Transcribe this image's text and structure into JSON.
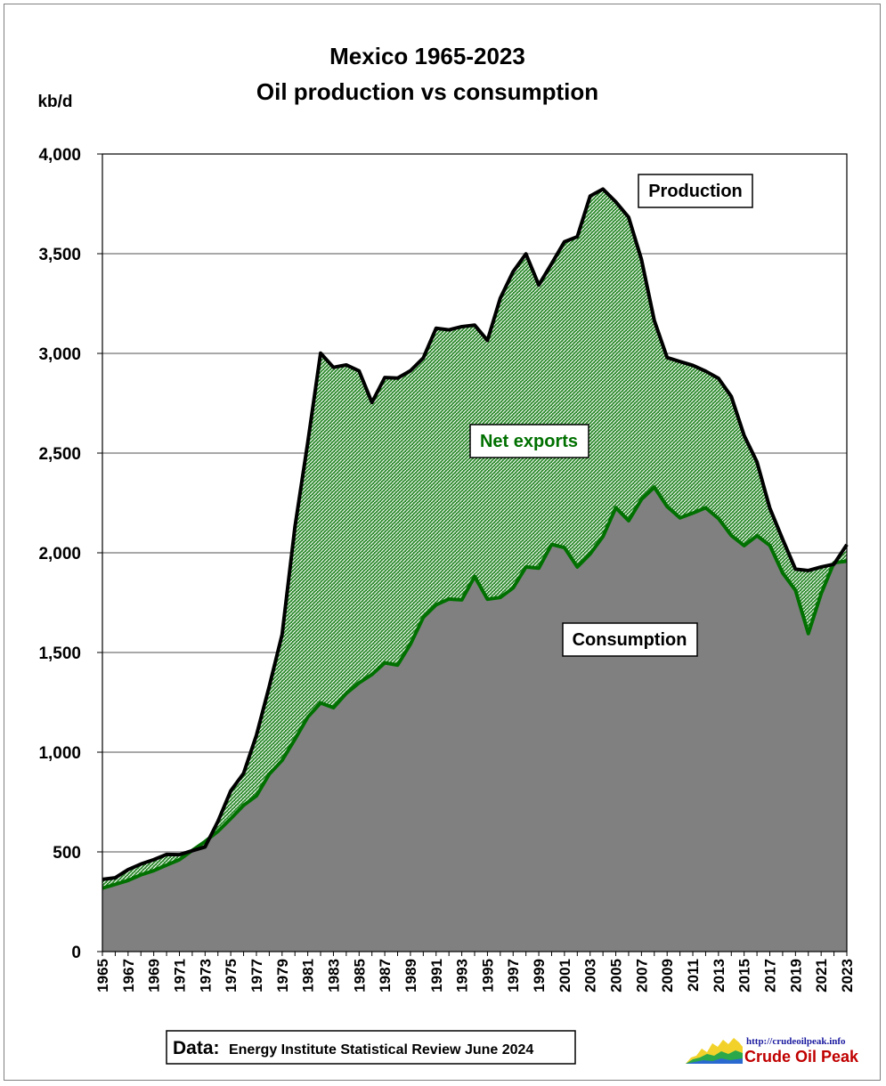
{
  "chart_data": {
    "type": "area",
    "title_lines": [
      "Mexico 1965-2023",
      "Oil production vs consumption"
    ],
    "ylabel": "kb/d",
    "ylim": [
      0,
      4000
    ],
    "yticks": [
      0,
      500,
      1000,
      1500,
      2000,
      2500,
      3000,
      3500,
      4000
    ],
    "ytick_labels": [
      "0",
      "500",
      "1,000",
      "1,500",
      "2,000",
      "2,500",
      "3,000",
      "3,500",
      "4,000"
    ],
    "xlim": [
      1965,
      2023
    ],
    "xtick_years": [
      1965,
      1967,
      1969,
      1971,
      1973,
      1975,
      1977,
      1979,
      1981,
      1983,
      1985,
      1987,
      1989,
      1991,
      1993,
      1995,
      1997,
      1999,
      2001,
      2003,
      2005,
      2007,
      2009,
      2011,
      2013,
      2015,
      2017,
      2019,
      2021,
      2023
    ],
    "grid": "horizontal",
    "colors": {
      "production": "#000000",
      "consumption_line": "#007000",
      "consumption_fill": "#808080",
      "net_exports_fill": "#2e8b2e"
    },
    "x": [
      1965,
      1966,
      1967,
      1968,
      1969,
      1970,
      1971,
      1972,
      1973,
      1974,
      1975,
      1976,
      1977,
      1978,
      1979,
      1980,
      1981,
      1982,
      1983,
      1984,
      1985,
      1986,
      1987,
      1988,
      1989,
      1990,
      1991,
      1992,
      1993,
      1994,
      1995,
      1996,
      1997,
      1998,
      1999,
      2000,
      2001,
      2002,
      2003,
      2004,
      2005,
      2006,
      2007,
      2008,
      2009,
      2010,
      2011,
      2012,
      2013,
      2014,
      2015,
      2016,
      2017,
      2018,
      2019,
      2020,
      2021,
      2022,
      2023
    ],
    "series": [
      {
        "name": "Production",
        "values": [
          362,
          370,
          411,
          439,
          461,
          487,
          486,
          506,
          525,
          653,
          806,
          894,
          1085,
          1330,
          1590,
          2129,
          2553,
          3001,
          2930,
          2942,
          2912,
          2754,
          2879,
          2876,
          2913,
          2977,
          3126,
          3118,
          3134,
          3142,
          3065,
          3277,
          3410,
          3499,
          3343,
          3450,
          3560,
          3585,
          3789,
          3824,
          3760,
          3683,
          3471,
          3165,
          2979,
          2959,
          2940,
          2911,
          2875,
          2784,
          2588,
          2456,
          2224,
          2068,
          1918,
          1911,
          1929,
          1943,
          2041
        ]
      },
      {
        "name": "Consumption",
        "values": [
          318,
          337,
          357,
          385,
          406,
          434,
          461,
          507,
          552,
          603,
          667,
          734,
          781,
          890,
          959,
          1065,
          1176,
          1247,
          1223,
          1295,
          1348,
          1390,
          1448,
          1437,
          1542,
          1676,
          1739,
          1768,
          1764,
          1881,
          1767,
          1776,
          1824,
          1929,
          1923,
          2042,
          2026,
          1929,
          1994,
          2082,
          2226,
          2161,
          2268,
          2329,
          2232,
          2175,
          2199,
          2226,
          2172,
          2087,
          2036,
          2086,
          2037,
          1899,
          1812,
          1595,
          1795,
          1950,
          1958
        ]
      }
    ],
    "annotations": [
      {
        "text": "Production",
        "color": "#000000"
      },
      {
        "text": "Net exports",
        "color": "#007000"
      },
      {
        "text": "Consumption",
        "color": "#000000"
      }
    ]
  },
  "source": {
    "label": "Data:",
    "text": "Energy Institute Statistical Review June 2024"
  },
  "logo": {
    "url": "http://crudeoilpeak.info",
    "name": "Crude Oil Peak"
  }
}
